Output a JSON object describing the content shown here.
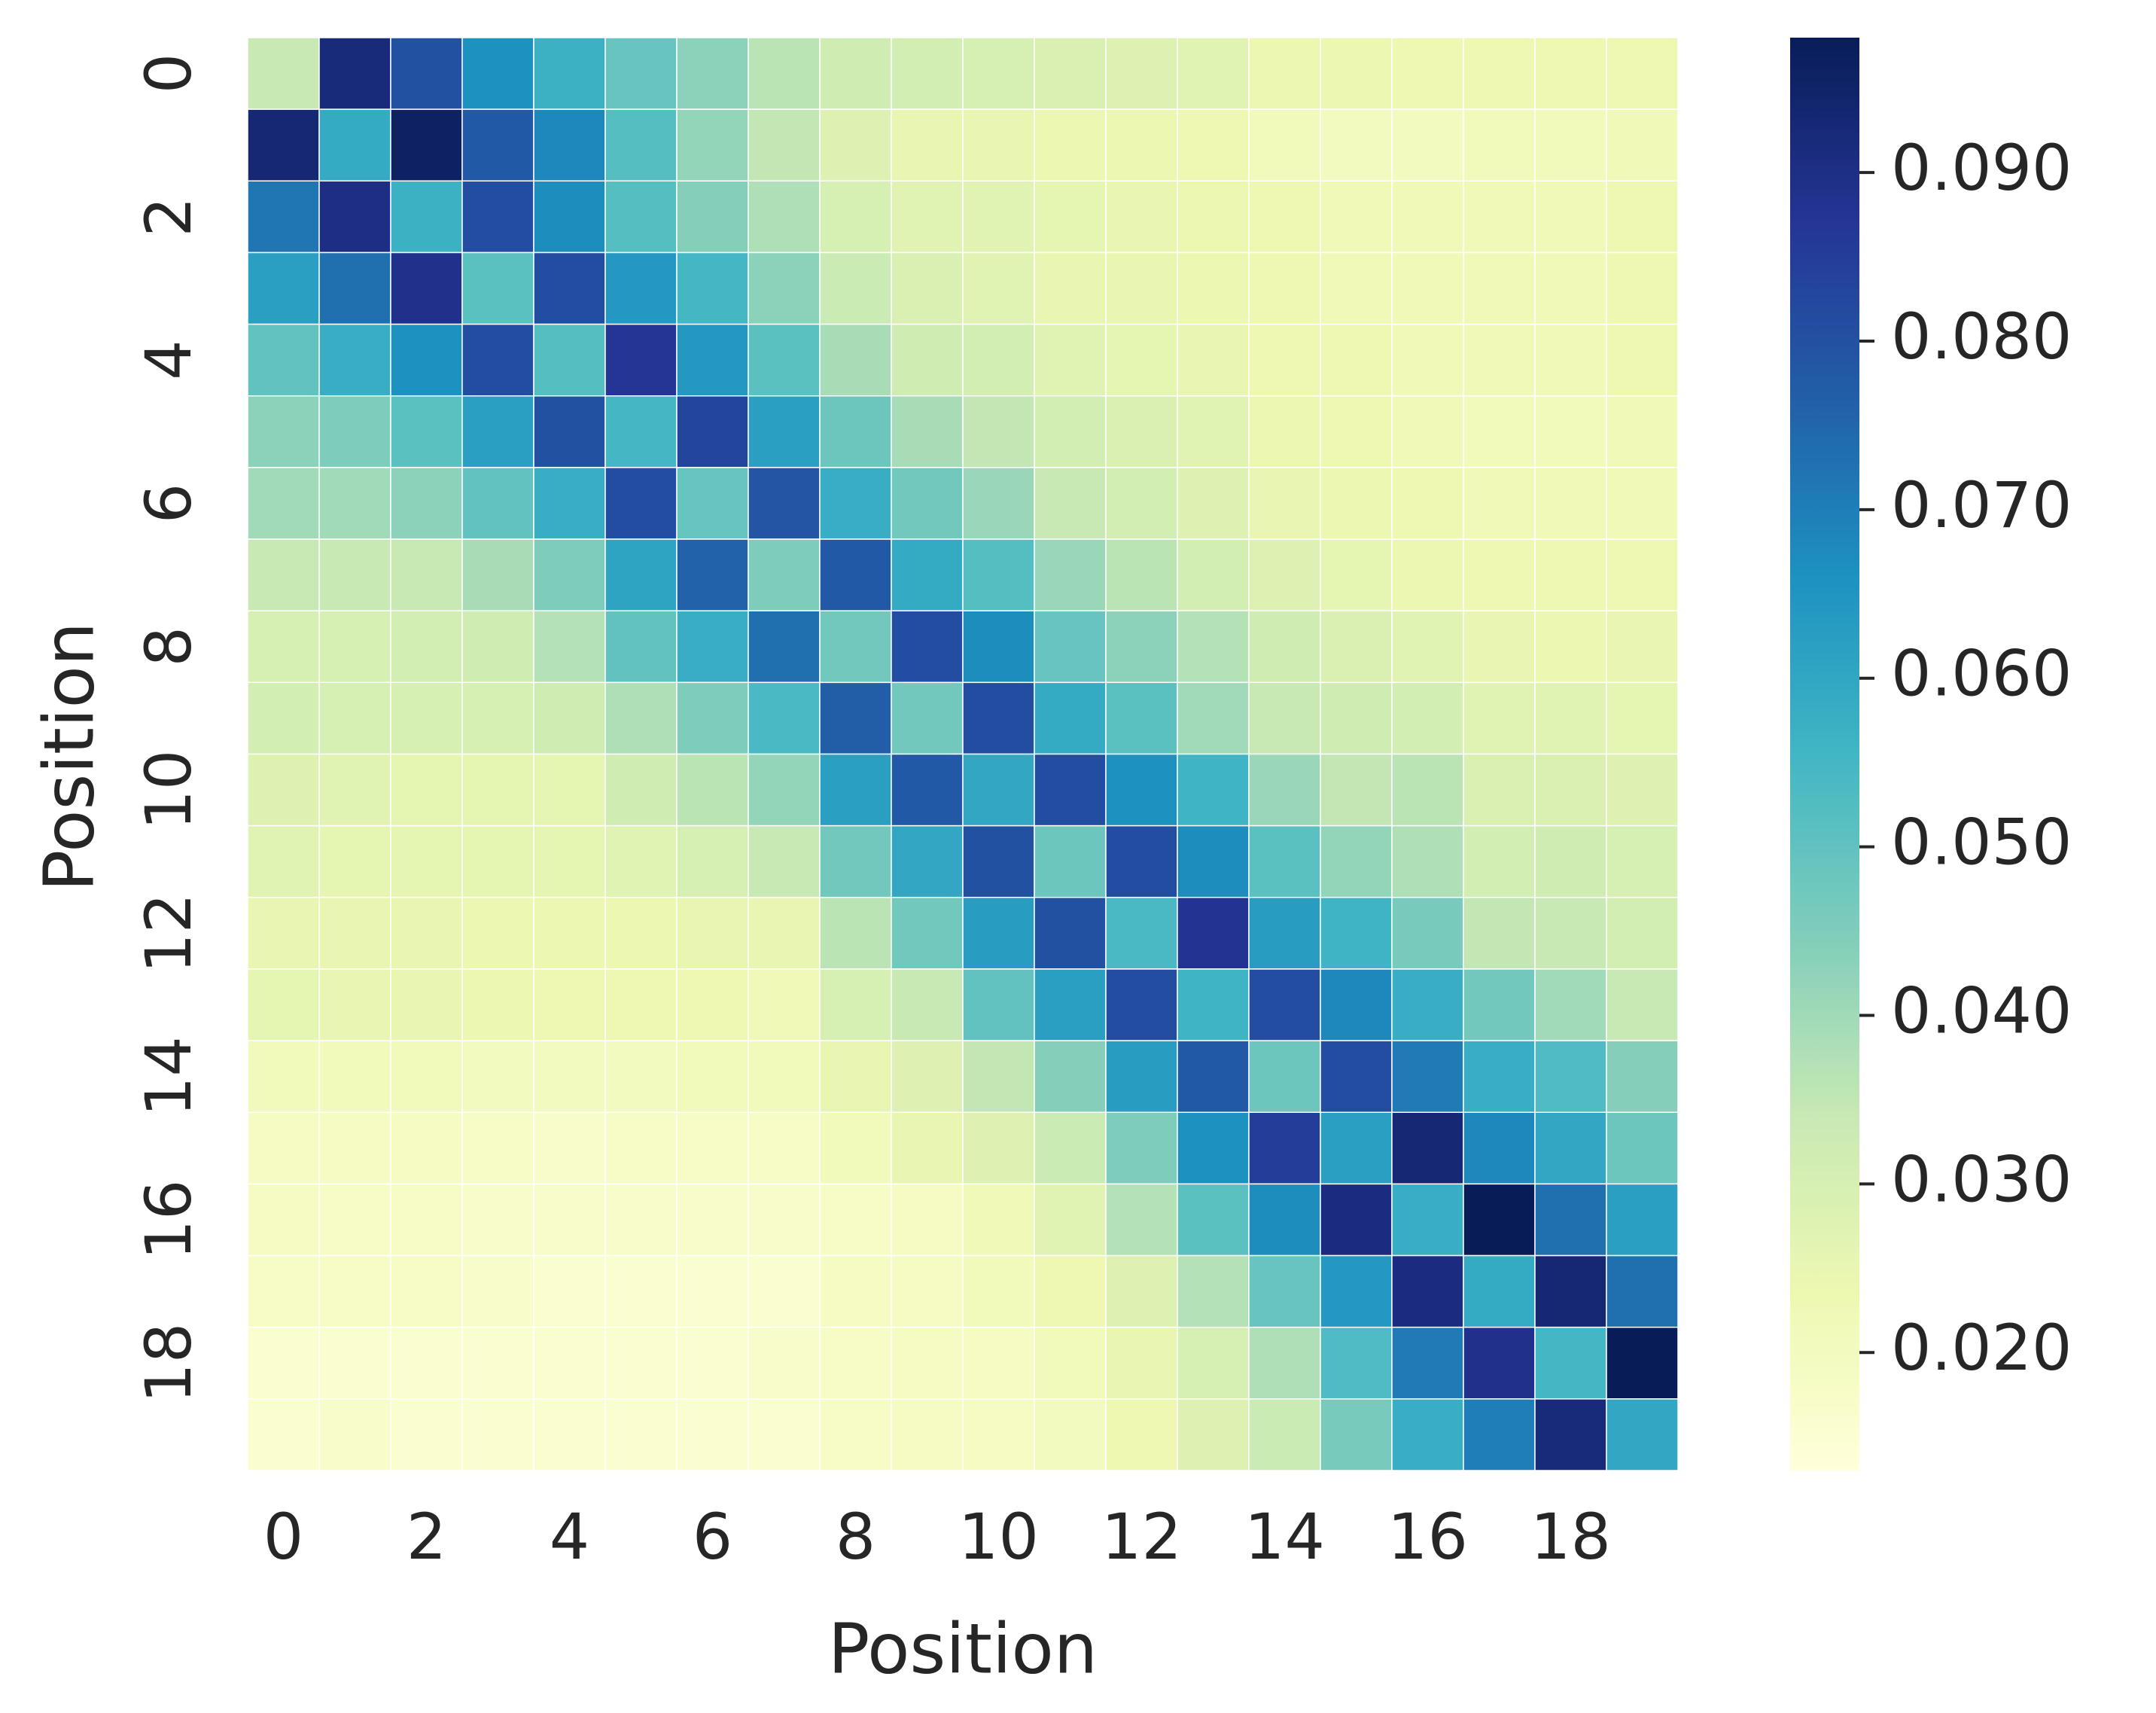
{
  "chart_data": {
    "type": "heatmap",
    "title": "",
    "xlabel": "Position",
    "ylabel": "Position",
    "rows": 20,
    "cols": 20,
    "x_tick_labels": [
      "0",
      "2",
      "4",
      "6",
      "8",
      "10",
      "12",
      "14",
      "16",
      "18"
    ],
    "y_tick_labels": [
      "0",
      "2",
      "4",
      "6",
      "8",
      "10",
      "12",
      "14",
      "16",
      "18"
    ],
    "x_tick_indices": [
      0,
      2,
      4,
      6,
      8,
      10,
      12,
      14,
      16,
      18
    ],
    "y_tick_indices": [
      0,
      2,
      4,
      6,
      8,
      10,
      12,
      14,
      16,
      18
    ],
    "colorbar": {
      "cmap": "YlGnBu",
      "vmin": 0.013,
      "vmax": 0.098,
      "tick_values": [
        0.02,
        0.03,
        0.04,
        0.05,
        0.06,
        0.07,
        0.08,
        0.09
      ],
      "tick_labels": [
        "0.020",
        "0.030",
        "0.040",
        "0.050",
        "0.060",
        "0.070",
        "0.080",
        "0.090"
      ],
      "colors": [
        "#ffffd9",
        "#edf8b1",
        "#c7e9b4",
        "#7fcdbb",
        "#41b6c4",
        "#1d91c0",
        "#225ea8",
        "#253494",
        "#081d58"
      ]
    },
    "grid_lines": true,
    "values": [
      [
        0.034,
        0.092,
        0.08,
        0.066,
        0.057,
        0.049,
        0.043,
        0.036,
        0.032,
        0.031,
        0.03,
        0.029,
        0.028,
        0.027,
        0.024,
        0.024,
        0.023,
        0.023,
        0.023,
        0.023
      ],
      [
        0.093,
        0.059,
        0.096,
        0.078,
        0.068,
        0.052,
        0.042,
        0.035,
        0.028,
        0.025,
        0.025,
        0.024,
        0.024,
        0.023,
        0.021,
        0.02,
        0.02,
        0.021,
        0.021,
        0.022
      ],
      [
        0.072,
        0.09,
        0.057,
        0.081,
        0.067,
        0.052,
        0.044,
        0.038,
        0.03,
        0.027,
        0.027,
        0.026,
        0.025,
        0.024,
        0.023,
        0.022,
        0.022,
        0.022,
        0.022,
        0.023
      ],
      [
        0.062,
        0.073,
        0.089,
        0.051,
        0.081,
        0.064,
        0.055,
        0.043,
        0.033,
        0.029,
        0.027,
        0.025,
        0.025,
        0.024,
        0.023,
        0.022,
        0.022,
        0.022,
        0.022,
        0.023
      ],
      [
        0.05,
        0.058,
        0.066,
        0.081,
        0.052,
        0.087,
        0.064,
        0.051,
        0.039,
        0.032,
        0.031,
        0.027,
        0.026,
        0.025,
        0.023,
        0.023,
        0.022,
        0.022,
        0.022,
        0.023
      ],
      [
        0.043,
        0.045,
        0.051,
        0.062,
        0.08,
        0.055,
        0.083,
        0.062,
        0.048,
        0.039,
        0.035,
        0.031,
        0.029,
        0.027,
        0.024,
        0.023,
        0.022,
        0.021,
        0.021,
        0.022
      ],
      [
        0.04,
        0.04,
        0.043,
        0.05,
        0.058,
        0.081,
        0.049,
        0.079,
        0.058,
        0.047,
        0.041,
        0.034,
        0.031,
        0.028,
        0.025,
        0.024,
        0.023,
        0.022,
        0.022,
        0.022
      ],
      [
        0.034,
        0.034,
        0.034,
        0.039,
        0.045,
        0.061,
        0.076,
        0.045,
        0.078,
        0.059,
        0.052,
        0.041,
        0.036,
        0.031,
        0.028,
        0.026,
        0.024,
        0.023,
        0.023,
        0.023
      ],
      [
        0.03,
        0.03,
        0.031,
        0.032,
        0.037,
        0.05,
        0.058,
        0.073,
        0.047,
        0.081,
        0.067,
        0.049,
        0.043,
        0.037,
        0.032,
        0.029,
        0.027,
        0.025,
        0.024,
        0.025
      ],
      [
        0.031,
        0.03,
        0.03,
        0.03,
        0.032,
        0.038,
        0.045,
        0.054,
        0.077,
        0.047,
        0.081,
        0.059,
        0.051,
        0.04,
        0.034,
        0.032,
        0.031,
        0.027,
        0.027,
        0.026
      ],
      [
        0.028,
        0.027,
        0.026,
        0.026,
        0.026,
        0.032,
        0.036,
        0.042,
        0.062,
        0.078,
        0.06,
        0.081,
        0.066,
        0.056,
        0.041,
        0.035,
        0.036,
        0.029,
        0.029,
        0.028
      ],
      [
        0.027,
        0.026,
        0.026,
        0.026,
        0.026,
        0.027,
        0.03,
        0.034,
        0.047,
        0.06,
        0.08,
        0.048,
        0.081,
        0.067,
        0.051,
        0.042,
        0.038,
        0.031,
        0.032,
        0.03
      ],
      [
        0.025,
        0.025,
        0.025,
        0.024,
        0.024,
        0.024,
        0.025,
        0.025,
        0.036,
        0.047,
        0.063,
        0.08,
        0.054,
        0.088,
        0.063,
        0.056,
        0.046,
        0.035,
        0.034,
        0.031
      ],
      [
        0.026,
        0.025,
        0.025,
        0.024,
        0.023,
        0.023,
        0.023,
        0.022,
        0.03,
        0.034,
        0.05,
        0.062,
        0.081,
        0.056,
        0.081,
        0.068,
        0.058,
        0.047,
        0.04,
        0.034
      ],
      [
        0.021,
        0.021,
        0.021,
        0.02,
        0.02,
        0.02,
        0.021,
        0.021,
        0.025,
        0.028,
        0.035,
        0.044,
        0.063,
        0.078,
        0.048,
        0.081,
        0.071,
        0.058,
        0.053,
        0.044
      ],
      [
        0.019,
        0.019,
        0.019,
        0.018,
        0.017,
        0.018,
        0.018,
        0.018,
        0.021,
        0.025,
        0.028,
        0.033,
        0.045,
        0.066,
        0.085,
        0.062,
        0.093,
        0.068,
        0.06,
        0.048
      ],
      [
        0.019,
        0.018,
        0.018,
        0.017,
        0.017,
        0.017,
        0.017,
        0.017,
        0.018,
        0.019,
        0.022,
        0.027,
        0.037,
        0.051,
        0.067,
        0.091,
        0.058,
        0.098,
        0.073,
        0.062
      ],
      [
        0.018,
        0.018,
        0.018,
        0.017,
        0.016,
        0.016,
        0.016,
        0.016,
        0.019,
        0.019,
        0.021,
        0.023,
        0.028,
        0.037,
        0.049,
        0.064,
        0.091,
        0.059,
        0.093,
        0.073
      ],
      [
        0.016,
        0.016,
        0.016,
        0.016,
        0.016,
        0.016,
        0.016,
        0.017,
        0.018,
        0.019,
        0.019,
        0.021,
        0.025,
        0.03,
        0.038,
        0.053,
        0.071,
        0.089,
        0.055,
        0.098
      ],
      [
        0.016,
        0.017,
        0.016,
        0.016,
        0.016,
        0.016,
        0.016,
        0.016,
        0.018,
        0.019,
        0.019,
        0.02,
        0.023,
        0.028,
        0.033,
        0.046,
        0.058,
        0.07,
        0.092,
        0.06
      ]
    ]
  }
}
